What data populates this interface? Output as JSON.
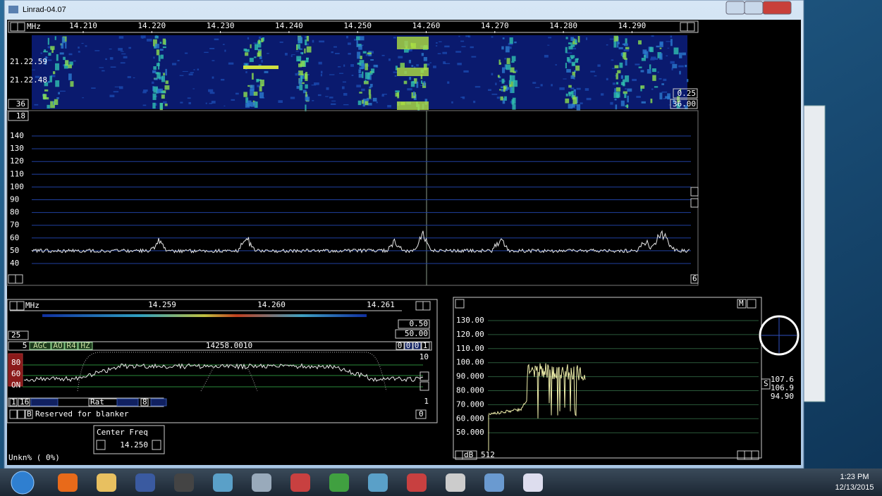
{
  "window": {
    "title": "Linrad-04.07"
  },
  "waterfall": {
    "unit": "MHz",
    "freq_labels": [
      "14.210",
      "14.220",
      "14.230",
      "14.240",
      "14.250",
      "14.260",
      "14.270",
      "14.280",
      "14.290"
    ],
    "timestamps": [
      "21.22.59",
      "21.22.48"
    ],
    "left_box": "36",
    "right_top": "0.25",
    "right_bottom": "36.00"
  },
  "spectrum": {
    "top_box": "18",
    "db_labels": [
      "140",
      "130",
      "120",
      "110",
      "100",
      "90",
      "80",
      "70",
      "60",
      "50",
      "40"
    ],
    "right_box": "6"
  },
  "baseband": {
    "unit": "MHz",
    "freq_labels": [
      "14.259",
      "14.260",
      "14.261"
    ],
    "right_top": "0.50",
    "right_bottom": "50.00",
    "left_box": "25",
    "mode_row": [
      "5",
      "AGC",
      "AO",
      "R4",
      "HZ"
    ],
    "frequency": "14258.0010",
    "counters": [
      "0",
      "0",
      "0",
      "1"
    ],
    "right_10": "10",
    "level_labels": [
      "80",
      "60",
      "ON"
    ],
    "right_1": "1",
    "bottom_row": [
      "1",
      "16",
      "Rat",
      "8"
    ],
    "blanker_b": "B",
    "blanker_text": "Reserved for blanker",
    "blanker_value": "0",
    "status": "Unkn% ( 0%)"
  },
  "center_freq": {
    "label": "Center Freq",
    "value": "14.250"
  },
  "afc": {
    "y_labels": [
      "130.00",
      "120.00",
      "110.00",
      "100.00",
      "90.000",
      "80.000",
      "70.000",
      "60.000",
      "50.000"
    ],
    "m_button": "M",
    "unit": "dB",
    "size": "512",
    "s_button": "S",
    "readouts": [
      "107.6",
      "106.9",
      "94.90"
    ]
  },
  "taskbar": {
    "time": "1:23 PM",
    "date": "12/13/2015"
  }
}
